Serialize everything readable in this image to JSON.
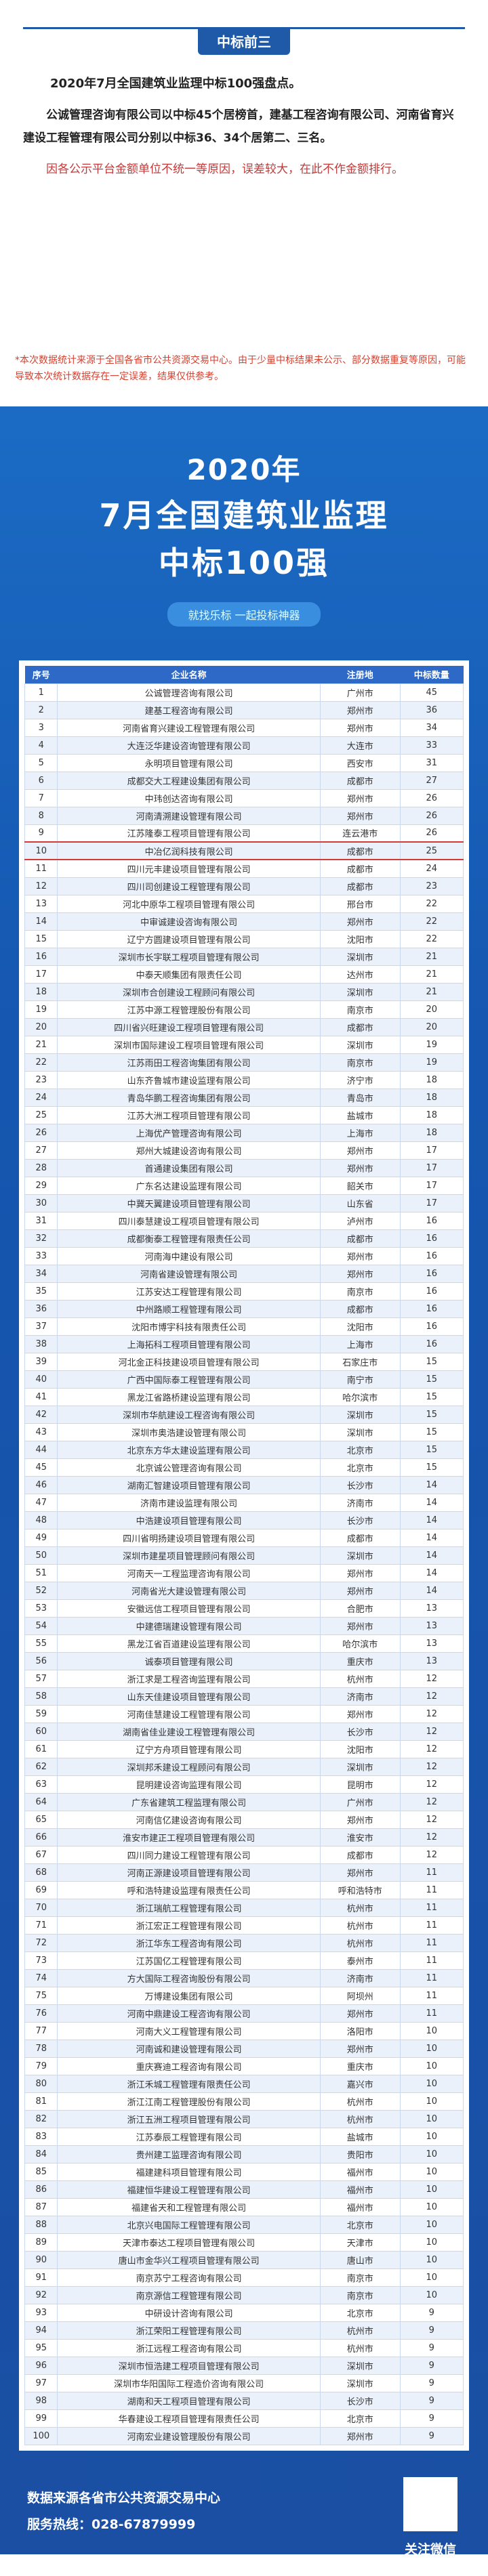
{
  "header": {
    "tab": "中标前三",
    "headline": "2020年7月全国建筑业监理中标100强盘点。",
    "paragraph1": "公诚管理咨询有限公司以中标45个居榜首，建基工程咨询有限公司、河南省育兴建设工程管理有限公司分别以中标36、34个居第二、三名。",
    "paragraph2": "因各公示平台金额单位不统一等原因，误差较大，在此不作金额排行。"
  },
  "note": "*本次数据统计来源于全国各省市公共资源交易中心。由于少量中标结果未公示、部分数据重复等原因，可能导致本次统计数据存在一定误差，结果仅供参考。",
  "poster": {
    "year": "2020年",
    "title_line1": "7月全国建筑业监理",
    "title_line2": "中标100强",
    "slogan": "就找乐标 一起投标神器"
  },
  "table": {
    "columns": [
      "序号",
      "企业名称",
      "注册地",
      "中标数量"
    ],
    "rows": [
      [
        1,
        "公诚管理咨询有限公司",
        "广州市",
        45
      ],
      [
        2,
        "建基工程咨询有限公司",
        "郑州市",
        36
      ],
      [
        3,
        "河南省育兴建设工程管理有限公司",
        "郑州市",
        34
      ],
      [
        4,
        "大连泛华建设咨询管理有限公司",
        "大连市",
        33
      ],
      [
        5,
        "永明项目管理有限公司",
        "西安市",
        31
      ],
      [
        6,
        "成都交大工程建设集团有限公司",
        "成都市",
        27
      ],
      [
        7,
        "中玮创达咨询有限公司",
        "郑州市",
        26
      ],
      [
        8,
        "河南清溯建设管理有限公司",
        "郑州市",
        26
      ],
      [
        9,
        "江苏隆泰工程项目管理有限公司",
        "连云港市",
        26
      ],
      [
        10,
        "中冶亿润科技有限公司",
        "成都市",
        25
      ],
      [
        11,
        "四川元丰建设项目管理有限公司",
        "成都市",
        24
      ],
      [
        12,
        "四川司创建设工程管理有限公司",
        "成都市",
        23
      ],
      [
        13,
        "河北中原华工程项目管理有限公司",
        "邢台市",
        22
      ],
      [
        14,
        "中审诚建设咨询有限公司",
        "郑州市",
        22
      ],
      [
        15,
        "辽宁方圆建设项目管理有限公司",
        "沈阳市",
        22
      ],
      [
        16,
        "深圳市长宇联工程项目管理有限公司",
        "深圳市",
        21
      ],
      [
        17,
        "中泰天顺集团有限责任公司",
        "达州市",
        21
      ],
      [
        18,
        "深圳市合创建设工程顾问有限公司",
        "深圳市",
        21
      ],
      [
        19,
        "江苏中源工程管理股份有限公司",
        "南京市",
        20
      ],
      [
        20,
        "四川省兴旺建设工程项目管理有限公司",
        "成都市",
        20
      ],
      [
        21,
        "深圳市国际建设工程项目管理有限公司",
        "深圳市",
        19
      ],
      [
        22,
        "江苏雨田工程咨询集团有限公司",
        "南京市",
        19
      ],
      [
        23,
        "山东齐鲁城市建设监理有限公司",
        "济宁市",
        18
      ],
      [
        24,
        "青岛华鹏工程咨询集团有限公司",
        "青岛市",
        18
      ],
      [
        25,
        "江苏大洲工程项目管理有限公司",
        "盐城市",
        18
      ],
      [
        26,
        "上海优产管理咨询有限公司",
        "上海市",
        18
      ],
      [
        27,
        "郑州大城建设咨询有限公司",
        "郑州市",
        17
      ],
      [
        28,
        "首通建设集团有限公司",
        "郑州市",
        17
      ],
      [
        29,
        "广东名达建设监理有限公司",
        "韶关市",
        17
      ],
      [
        30,
        "中冀天翼建设项目管理有限公司",
        "山东省",
        17
      ],
      [
        31,
        "四川泰慧建设工程项目管理有限公司",
        "泸州市",
        16
      ],
      [
        32,
        "成都衡泰工程管理有限责任公司",
        "成都市",
        16
      ],
      [
        33,
        "河南海中建设有限公司",
        "郑州市",
        16
      ],
      [
        34,
        "河南省建设管理有限公司",
        "郑州市",
        16
      ],
      [
        35,
        "江苏安达工程管理有限公司",
        "南京市",
        16
      ],
      [
        36,
        "中州路顺工程管理有限公司",
        "成都市",
        16
      ],
      [
        37,
        "沈阳市博宇科技有限责任公司",
        "沈阳市",
        16
      ],
      [
        38,
        "上海拓科工程项目管理有限公司",
        "上海市",
        16
      ],
      [
        39,
        "河北金正科技建设项目管理有限公司",
        "石家庄市",
        15
      ],
      [
        40,
        "广西中国际泰工程管理有限公司",
        "南宁市",
        15
      ],
      [
        41,
        "黑龙江省路桥建设监理有限公司",
        "哈尔滨市",
        15
      ],
      [
        42,
        "深圳市华航建设工程咨询有限公司",
        "深圳市",
        15
      ],
      [
        43,
        "深圳市奥浩建设管理有限公司",
        "深圳市",
        15
      ],
      [
        44,
        "北京东方华太建设监理有限公司",
        "北京市",
        15
      ],
      [
        45,
        "北京诚公管理咨询有限公司",
        "北京市",
        15
      ],
      [
        46,
        "湖南汇智建设项目管理有限公司",
        "长沙市",
        14
      ],
      [
        47,
        "济南市建设监理有限公司",
        "济南市",
        14
      ],
      [
        48,
        "中浩建设项目管理有限公司",
        "长沙市",
        14
      ],
      [
        49,
        "四川省明扬建设项目管理有限公司",
        "成都市",
        14
      ],
      [
        50,
        "深圳市建星项目管理顾问有限公司",
        "深圳市",
        14
      ],
      [
        51,
        "河南天一工程监理咨询有限公司",
        "郑州市",
        14
      ],
      [
        52,
        "河南省光大建设管理有限公司",
        "郑州市",
        14
      ],
      [
        53,
        "安徽远信工程项目管理有限公司",
        "合肥市",
        13
      ],
      [
        54,
        "中建德瑞建设管理有限公司",
        "郑州市",
        13
      ],
      [
        55,
        "黑龙江省百道建设监理有限公司",
        "哈尔滨市",
        13
      ],
      [
        56,
        "诚泰项目管理有限公司",
        "重庆市",
        13
      ],
      [
        57,
        "浙江求是工程咨询监理有限公司",
        "杭州市",
        12
      ],
      [
        58,
        "山东天佳建设项目管理有限公司",
        "济南市",
        12
      ],
      [
        59,
        "河南佳慧建设工程管理有限公司",
        "郑州市",
        12
      ],
      [
        60,
        "湖南省佳业建设工程管理有限公司",
        "长沙市",
        12
      ],
      [
        61,
        "辽宁方舟项目管理有限公司",
        "沈阳市",
        12
      ],
      [
        62,
        "深圳邦禾建设工程顾问有限公司",
        "深圳市",
        12
      ],
      [
        63,
        "昆明建设咨询监理有限公司",
        "昆明市",
        12
      ],
      [
        64,
        "广东省建筑工程监理有限公司",
        "广州市",
        12
      ],
      [
        65,
        "河南信亿建设咨询有限公司",
        "郑州市",
        12
      ],
      [
        66,
        "淮安市建正工程项目管理有限公司",
        "淮安市",
        12
      ],
      [
        67,
        "四川同力建设工程管理有限公司",
        "成都市",
        12
      ],
      [
        68,
        "河南正源建设项目管理有限公司",
        "郑州市",
        11
      ],
      [
        69,
        "呼和浩特建设监理有限责任公司",
        "呼和浩特市",
        11
      ],
      [
        70,
        "浙江瑞航工程管理有限公司",
        "杭州市",
        11
      ],
      [
        71,
        "浙江宏正工程管理有限公司",
        "杭州市",
        11
      ],
      [
        72,
        "浙江华东工程咨询有限公司",
        "杭州市",
        11
      ],
      [
        73,
        "江苏国亿工程管理有限公司",
        "泰州市",
        11
      ],
      [
        74,
        "方大国际工程咨询股份有限公司",
        "济南市",
        11
      ],
      [
        75,
        "万博建设集团有限公司",
        "阿坝州",
        11
      ],
      [
        76,
        "河南中鼎建设工程咨询有限公司",
        "郑州市",
        11
      ],
      [
        77,
        "河南大义工程管理有限公司",
        "洛阳市",
        10
      ],
      [
        78,
        "河南诚和建设管理有限公司",
        "郑州市",
        10
      ],
      [
        79,
        "重庆赛迪工程咨询有限公司",
        "重庆市",
        10
      ],
      [
        80,
        "浙江禾城工程管理有限责任公司",
        "嘉兴市",
        10
      ],
      [
        81,
        "浙江江南工程管理股份有限公司",
        "杭州市",
        10
      ],
      [
        82,
        "浙江五洲工程项目管理有限公司",
        "杭州市",
        10
      ],
      [
        83,
        "江苏泰辰工程管理有限公司",
        "盐城市",
        10
      ],
      [
        84,
        "贵州建工监理咨询有限公司",
        "贵阳市",
        10
      ],
      [
        85,
        "福建建科项目管理有限公司",
        "福州市",
        10
      ],
      [
        86,
        "福建恒华建设工程管理有限公司",
        "福州市",
        10
      ],
      [
        87,
        "福建省天和工程管理有限公司",
        "福州市",
        10
      ],
      [
        88,
        "北京兴电国际工程管理有限公司",
        "北京市",
        10
      ],
      [
        89,
        "天津市泰达工程项目管理有限公司",
        "天津市",
        10
      ],
      [
        90,
        "唐山市金华兴工程项目管理有限公司",
        "唐山市",
        10
      ],
      [
        91,
        "南京苏宁工程咨询有限公司",
        "南京市",
        10
      ],
      [
        92,
        "南京源信工程管理有限公司",
        "南京市",
        10
      ],
      [
        93,
        "中研设计咨询有限公司",
        "北京市",
        9
      ],
      [
        94,
        "浙江荣阳工程管理有限公司",
        "杭州市",
        9
      ],
      [
        95,
        "浙江远程工程咨询有限公司",
        "杭州市",
        9
      ],
      [
        96,
        "深圳市恒浩建工程项目管理有限公司",
        "深圳市",
        9
      ],
      [
        97,
        "深圳市华阳国际工程造价咨询有限公司",
        "深圳市",
        9
      ],
      [
        98,
        "湖南和天工程项目管理有限公司",
        "长沙市",
        9
      ],
      [
        99,
        "华春建设工程项目管理有限责任公司",
        "北京市",
        9
      ],
      [
        100,
        "河南宏业建设管理股份有限公司",
        "郑州市",
        9
      ]
    ]
  },
  "footer": {
    "source": "数据来源各省市公共资源交易中心",
    "hotline": "服务热线：028-67879999",
    "qr_caption": "关注微信乐标"
  }
}
